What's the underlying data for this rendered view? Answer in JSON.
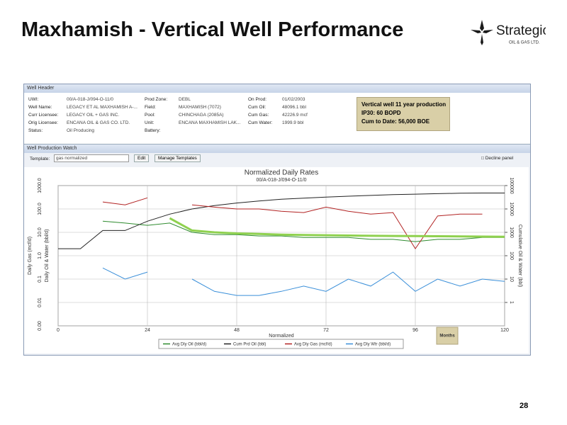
{
  "slide": {
    "title": "Maxhamish - Vertical Well Performance",
    "logo_name": "Strategic",
    "logo_sub": "OIL & GAS LTD.",
    "page_number": "28"
  },
  "well_header": {
    "title": "Well Header",
    "columns": [
      [
        {
          "label": "UWI:",
          "value": "00/A-018-J/094-O-11/0"
        },
        {
          "label": "Well Name:",
          "value": "LEGACY ET AL MAXHAMISH A-..."
        },
        {
          "label": "Curr Licensee:",
          "value": "LEGACY OIL + GAS INC."
        },
        {
          "label": "Orig Licensee:",
          "value": "ENCANA OIL & GAS CO. LTD."
        },
        {
          "label": "Status:",
          "value": "Oil Producing"
        }
      ],
      [
        {
          "label": "Prod Zone:",
          "value": "DEBL"
        },
        {
          "label": "Field:",
          "value": "MAXHAMISH (7072)"
        },
        {
          "label": "Pool:",
          "value": "CHINCHAGA (2085A)"
        },
        {
          "label": "Unit:",
          "value": "ENCANA MAXHAMISH LAK..."
        },
        {
          "label": "Battery:"
        }
      ],
      [
        {
          "label": "On Prod:",
          "value": "01/02/2003"
        },
        {
          "label": "Cum Oil:",
          "value": "48096.1 bbl"
        },
        {
          "label": "Cum Gas:",
          "value": "42226.9 mcf"
        },
        {
          "label": "Cum Water:",
          "value": "1999.9 bbl"
        }
      ]
    ]
  },
  "callout": [
    "Vertical well 11 year production",
    "IP30: 60 BOPD",
    "Cum to Date: 56,000 BOE"
  ],
  "panel": {
    "title": "Well Production Watch",
    "template_label": "Template:",
    "template_value": "gas normalized",
    "edit_button": "Edit",
    "manage_button": "Manage Templates",
    "decline_checkbox": "Decline panel",
    "months_button": "Months"
  },
  "chart_data": {
    "type": "line",
    "title": "Normalized Daily Rates",
    "subtitle": "00/A-018-J/094-O-11/0",
    "x_label": "Normalized",
    "y_label": "Daily Gas (mcf/d)",
    "y_label_2": "Daily Oil & Water (bbl/d)",
    "y2_label": "Cumulative Oil & Water (bbl)",
    "x": [
      0,
      6,
      12,
      18,
      24,
      30,
      36,
      42,
      48,
      54,
      60,
      66,
      72,
      78,
      84,
      90,
      96,
      102,
      108,
      114,
      120
    ],
    "xlim": [
      0,
      120
    ],
    "xticks": [
      0,
      24,
      48,
      72,
      96,
      120
    ],
    "yscale": "log",
    "ylim": [
      0.001,
      1000
    ],
    "yticks": [
      {
        "value": 1000,
        "label": "1000.0"
      },
      {
        "value": 100,
        "label": "100.0"
      },
      {
        "value": 10,
        "label": "10.0"
      },
      {
        "value": 1,
        "label": "1.0"
      },
      {
        "value": 0.1,
        "label": "0.1"
      },
      0.01,
      {
        "value": 0.001,
        "label": "0.00"
      }
    ],
    "y2lim": [
      0.1,
      100000
    ],
    "y2ticks": [
      100000,
      10000,
      1000,
      100,
      10,
      1
    ],
    "grid": true,
    "legend": "bottom",
    "series": [
      {
        "name": "Avg Dly Oil (bbl/d)",
        "color": "#2e8b2e",
        "values": [
          null,
          null,
          30,
          25,
          20,
          25,
          10,
          8,
          8,
          7,
          7,
          6,
          6,
          6,
          5,
          5,
          4,
          5,
          5,
          6,
          6
        ]
      },
      {
        "name": "Cum Prd Oil (bbl)",
        "color": "#222222",
        "axis": "y2",
        "values": [
          200,
          200,
          1200,
          1200,
          3000,
          6000,
          10000,
          14000,
          18000,
          22000,
          26000,
          29000,
          32000,
          35000,
          38000,
          41000,
          43000,
          45000,
          47000,
          48000,
          48096
        ]
      },
      {
        "name": "Avg Dly Gas (mcf/d)",
        "color": "#b22222",
        "values": [
          null,
          null,
          200,
          150,
          300,
          null,
          150,
          120,
          100,
          100,
          80,
          70,
          120,
          80,
          60,
          70,
          2,
          50,
          60,
          60,
          null
        ]
      },
      {
        "name": "Avg Dly Wtr (bbl/d)",
        "color": "#3a8fd9",
        "values": [
          null,
          null,
          0.3,
          0.1,
          0.2,
          null,
          0.1,
          0.03,
          0.02,
          0.02,
          0.03,
          0.05,
          0.03,
          0.1,
          0.05,
          0.2,
          0.03,
          0.1,
          0.05,
          0.1,
          0.08
        ]
      },
      {
        "color": "#8fd14f",
        "line_width": 3,
        "values": [
          null,
          null,
          null,
          null,
          null,
          40,
          12,
          10,
          9,
          8.5,
          8,
          7.7,
          7.5,
          7.3,
          7.1,
          7,
          6.9,
          6.8,
          6.7,
          6.6,
          6.5
        ]
      }
    ]
  }
}
